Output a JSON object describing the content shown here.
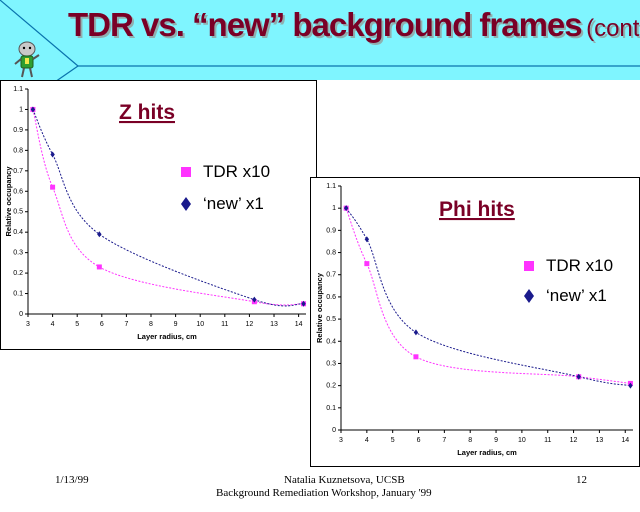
{
  "slide": {
    "title_main": "TDR vs. “new” background frames",
    "title_sub": "(cont.)",
    "colors": {
      "background": "#7ff5ff",
      "band": "#0a73ad",
      "title": "#7a0026",
      "tdr": "#ff33ff",
      "new": "#1a1a8c"
    },
    "icon": "mascot-figure-icon"
  },
  "footer": {
    "date": "1/13/99",
    "author": "Natalia Kuznetsova, UCSB",
    "workshop": "Background Remediation Workshop, January '99",
    "page": "12"
  },
  "chart_data": [
    {
      "type": "scatter",
      "title": "Z hits",
      "xlabel": "Layer radius, cm",
      "ylabel": "Relative occupancy",
      "xticks": [
        3,
        4,
        5,
        6,
        7,
        8,
        9,
        10,
        11,
        12,
        13,
        14
      ],
      "ylim": [
        0,
        1.1
      ],
      "xlim": [
        3,
        14.3
      ],
      "yticks": [
        "0",
        "0.1",
        "0.2",
        "0.3",
        "0.4",
        "0.5",
        "0.6",
        "0.7",
        "0.8",
        "0.9",
        "1",
        "1.1"
      ],
      "legend_position": "right",
      "grid": false,
      "series": [
        {
          "name": "TDR x10",
          "marker": "square",
          "color": "#ff33ff",
          "x": [
            3.2,
            4.0,
            5.9,
            12.2,
            14.2
          ],
          "y": [
            1.0,
            0.62,
            0.23,
            0.06,
            0.05
          ]
        },
        {
          "name": "‘new’ x1",
          "marker": "diamond",
          "color": "#1a1a8c",
          "x": [
            3.2,
            4.0,
            5.9,
            12.2,
            14.2
          ],
          "y": [
            1.0,
            0.78,
            0.39,
            0.07,
            0.05
          ]
        }
      ]
    },
    {
      "type": "scatter",
      "title": "Phi hits",
      "xlabel": "Layer radius, cm",
      "ylabel": "Relative occupancy",
      "xticks": [
        3,
        4,
        5,
        6,
        7,
        8,
        9,
        10,
        11,
        12,
        13,
        14
      ],
      "ylim": [
        0,
        1.1
      ],
      "xlim": [
        3,
        14.3
      ],
      "yticks": [
        "0",
        "0.1",
        "0.2",
        "0.3",
        "0.4",
        "0.5",
        "0.6",
        "0.7",
        "0.8",
        "0.9",
        "1",
        "1.1"
      ],
      "legend_position": "right",
      "grid": false,
      "series": [
        {
          "name": "TDR x10",
          "marker": "square",
          "color": "#ff33ff",
          "x": [
            3.2,
            4.0,
            5.9,
            12.2,
            14.2
          ],
          "y": [
            1.0,
            0.75,
            0.33,
            0.24,
            0.21
          ]
        },
        {
          "name": "‘new’ x1",
          "marker": "diamond",
          "color": "#1a1a8c",
          "x": [
            3.2,
            4.0,
            5.9,
            12.2,
            14.2
          ],
          "y": [
            1.0,
            0.86,
            0.44,
            0.24,
            0.2
          ]
        }
      ]
    }
  ]
}
